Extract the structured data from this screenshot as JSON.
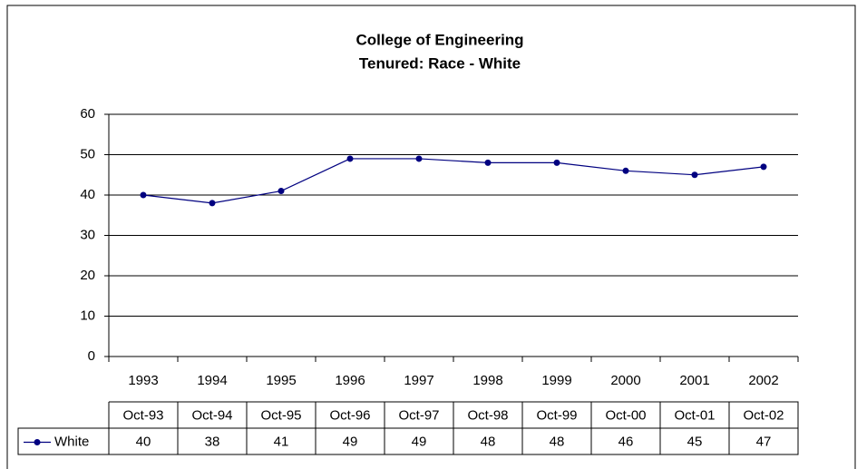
{
  "chart_data": {
    "type": "line",
    "title": [
      "College of Engineering",
      "Tenured: Race - White"
    ],
    "categories": [
      "1993",
      "1994",
      "1995",
      "1996",
      "1997",
      "1998",
      "1999",
      "2000",
      "2001",
      "2002"
    ],
    "data_table_columns": [
      "Oct-93",
      "Oct-94",
      "Oct-95",
      "Oct-96",
      "Oct-97",
      "Oct-98",
      "Oct-99",
      "Oct-00",
      "Oct-01",
      "Oct-02"
    ],
    "series": [
      {
        "name": "White",
        "color": "#000080",
        "values": [
          40,
          38,
          41,
          49,
          49,
          48,
          48,
          46,
          45,
          47
        ]
      }
    ],
    "ylim": [
      0,
      60
    ],
    "yticks": [
      0,
      10,
      20,
      30,
      40,
      50,
      60
    ],
    "grid": true
  }
}
